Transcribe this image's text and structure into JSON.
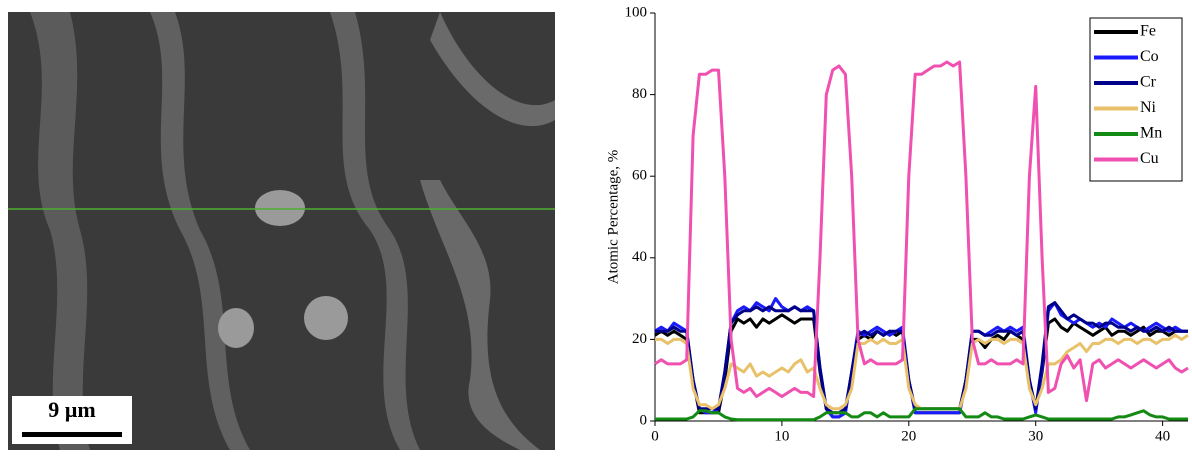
{
  "image": {
    "scale_bar": "9 µm"
  },
  "chart_data": {
    "type": "line",
    "ylabel": "Atomic Percentage, %",
    "x": [
      0,
      0.5,
      1,
      1.5,
      2,
      2.5,
      3,
      3.5,
      4,
      4.5,
      5,
      5.5,
      6,
      6.5,
      7,
      7.5,
      8,
      8.5,
      9,
      9.5,
      10,
      10.5,
      11,
      11.5,
      12,
      12.5,
      13,
      13.5,
      14,
      14.5,
      15,
      15.5,
      16,
      16.5,
      17,
      17.5,
      18,
      18.5,
      19,
      19.5,
      20,
      20.5,
      21,
      21.5,
      22,
      22.5,
      23,
      23.5,
      24,
      24.5,
      25,
      25.5,
      26,
      26.5,
      27,
      27.5,
      28,
      28.5,
      29,
      29.5,
      30,
      30.5,
      31,
      31.5,
      32,
      32.5,
      33,
      33.5,
      34,
      34.5,
      35,
      35.5,
      36,
      36.5,
      37,
      37.5,
      38,
      38.5,
      39,
      39.5,
      40,
      40.5,
      41,
      41.5,
      42
    ],
    "xlim": [
      0,
      42
    ],
    "xticks": [
      0,
      10,
      20,
      30,
      40
    ],
    "ylim": [
      0,
      100
    ],
    "yticks": [
      0,
      20,
      40,
      60,
      80,
      100
    ],
    "legend": "upper right",
    "series": [
      {
        "name": "Fe",
        "color": "#000000",
        "values": [
          21,
          22,
          21,
          22,
          21,
          20,
          10,
          2,
          2,
          2,
          2,
          10,
          22,
          25,
          24,
          25,
          23,
          25,
          24,
          25,
          26,
          25,
          24,
          25,
          25,
          25,
          12,
          3,
          1,
          1,
          2,
          12,
          20,
          21,
          20,
          22,
          21,
          22,
          21,
          22,
          10,
          2,
          2,
          2,
          2,
          2,
          2,
          2,
          2,
          10,
          20,
          20,
          18,
          20,
          21,
          20,
          22,
          21,
          20,
          10,
          3,
          12,
          24,
          25,
          23,
          22,
          24,
          23,
          22,
          21,
          22,
          23,
          21,
          22,
          22,
          21,
          22,
          23,
          21,
          22,
          22,
          21,
          22,
          22,
          22
        ]
      },
      {
        "name": "Co",
        "color": "#1a1aff",
        "values": [
          22,
          23,
          22,
          24,
          23,
          22,
          10,
          3,
          2,
          2,
          3,
          12,
          24,
          27,
          28,
          27,
          29,
          28,
          27,
          30,
          28,
          27,
          28,
          27,
          28,
          27,
          13,
          3,
          1,
          1,
          2,
          12,
          22,
          21,
          22,
          23,
          22,
          21,
          22,
          23,
          10,
          2,
          2,
          2,
          2,
          2,
          2,
          2,
          2,
          10,
          22,
          22,
          21,
          22,
          23,
          22,
          23,
          22,
          23,
          10,
          2,
          13,
          27,
          29,
          26,
          25,
          24,
          25,
          24,
          23,
          24,
          23,
          25,
          24,
          23,
          24,
          23,
          22,
          23,
          24,
          23,
          22,
          23,
          22,
          22
        ]
      },
      {
        "name": "Cr",
        "color": "#00008b",
        "values": [
          22,
          22,
          22,
          23,
          22,
          22,
          10,
          3,
          3,
          3,
          3,
          12,
          24,
          26,
          27,
          27,
          28,
          27,
          28,
          27,
          27,
          27,
          28,
          27,
          27,
          27,
          13,
          3,
          2,
          2,
          3,
          12,
          21,
          22,
          21,
          22,
          21,
          22,
          22,
          22,
          10,
          3,
          3,
          3,
          3,
          3,
          3,
          3,
          3,
          10,
          22,
          22,
          21,
          21,
          22,
          22,
          22,
          21,
          22,
          10,
          3,
          14,
          28,
          29,
          27,
          25,
          26,
          25,
          24,
          24,
          23,
          24,
          24,
          23,
          23,
          22,
          23,
          22,
          22,
          23,
          22,
          23,
          22,
          22,
          22
        ]
      },
      {
        "name": "Ni",
        "color": "#e8c16a",
        "values": [
          20,
          20,
          19,
          20,
          20,
          19,
          8,
          4,
          4,
          3,
          4,
          8,
          14,
          13,
          12,
          14,
          11,
          12,
          11,
          12,
          13,
          12,
          14,
          15,
          12,
          13,
          8,
          4,
          3,
          3,
          4,
          8,
          19,
          19,
          20,
          19,
          20,
          19,
          19,
          20,
          8,
          4,
          3,
          3,
          3,
          3,
          3,
          3,
          3,
          8,
          19,
          20,
          19,
          20,
          20,
          19,
          20,
          20,
          19,
          8,
          4,
          8,
          14,
          14,
          15,
          17,
          18,
          19,
          17,
          19,
          19,
          20,
          20,
          19,
          20,
          20,
          19,
          20,
          20,
          19,
          20,
          20,
          21,
          20,
          21
        ]
      },
      {
        "name": "Mn",
        "color": "#138a13",
        "values": [
          0.5,
          0.5,
          0.5,
          0.5,
          0.5,
          0.5,
          1,
          2.5,
          2.5,
          2,
          2,
          1,
          0.5,
          0.3,
          0.3,
          0.3,
          0.3,
          0.3,
          0.3,
          0.3,
          0.3,
          0.3,
          0.3,
          0.3,
          0.3,
          0.3,
          1,
          2,
          2,
          2,
          2,
          1,
          1,
          2,
          2,
          1,
          2,
          1,
          1,
          1,
          1,
          3,
          3,
          3,
          3,
          3,
          3,
          3,
          3,
          1,
          1,
          1,
          2,
          1,
          1,
          0.5,
          0.5,
          0.5,
          0.5,
          1,
          1.5,
          1,
          0.5,
          0.5,
          0.5,
          0.5,
          0.5,
          0.5,
          0.5,
          0.5,
          0.5,
          0.5,
          0.5,
          1,
          1,
          1.5,
          2,
          2.5,
          1.5,
          1,
          1,
          0.5,
          0.5,
          0.5,
          0.5
        ]
      },
      {
        "name": "Cu",
        "color": "#f050b0",
        "values": [
          14,
          15,
          14,
          14,
          14,
          15,
          70,
          85,
          85,
          86,
          86,
          60,
          20,
          8,
          7,
          8,
          6,
          7,
          8,
          7,
          6,
          7,
          8,
          7,
          7,
          6,
          40,
          80,
          86,
          87,
          85,
          60,
          20,
          14,
          15,
          14,
          14,
          14,
          14,
          15,
          60,
          85,
          85,
          86,
          87,
          87,
          88,
          87,
          88,
          60,
          20,
          14,
          14,
          15,
          14,
          14,
          14,
          15,
          14,
          60,
          82,
          40,
          7,
          8,
          14,
          16,
          13,
          15,
          5,
          14,
          15,
          13,
          14,
          15,
          14,
          13,
          14,
          15,
          14,
          13,
          14,
          15,
          13,
          12,
          13
        ]
      }
    ]
  }
}
